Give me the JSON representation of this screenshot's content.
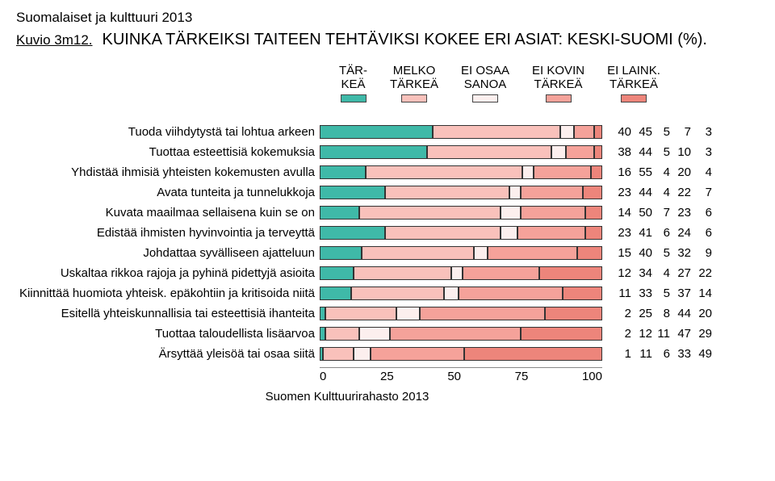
{
  "supertitle": "Suomalaiset ja kulttuuri 2013",
  "kuvio_label": "Kuvio 3m12.",
  "main_title": "KUINKA TÄRKEIKSI TAITEEN TEHTÄVIKSI KOKEE ERI ASIAT: KESKI-SUOMI (%).",
  "source_line": "Suomen Kulttuurirahasto 2013",
  "legend": [
    {
      "line1": "TÄR-",
      "line2": "KEÄ",
      "color": "#3fb9a8"
    },
    {
      "line1": "MELKO",
      "line2": "TÄRKEÄ",
      "color": "#f9c1bb"
    },
    {
      "line1": "EI OSAA",
      "line2": "SANOA",
      "color": "#fcefee"
    },
    {
      "line1": "EI KOVIN",
      "line2": "TÄRKEÄ",
      "color": "#f5a29a"
    },
    {
      "line1": "EI LAINK.",
      "line2": "TÄRKEÄ",
      "color": "#ed857b"
    }
  ],
  "colors": {
    "c1": "#3fb9a8",
    "c2": "#f9c1bb",
    "c3": "#fcefee",
    "c4": "#f5a29a",
    "c5": "#ed857b",
    "border": "#333333"
  },
  "xaxis": {
    "ticks": [
      "0",
      "25",
      "50",
      "75",
      "100"
    ],
    "max": 100
  },
  "num_col_widths": [
    26,
    26,
    22,
    26,
    26
  ],
  "rows": [
    {
      "label": "Tuoda viihdytystä tai lohtua arkeen",
      "v": [
        40,
        45,
        5,
        7,
        3
      ]
    },
    {
      "label": "Tuottaa esteettisiä kokemuksia",
      "v": [
        38,
        44,
        5,
        10,
        3
      ]
    },
    {
      "label": "Yhdistää ihmisiä yhteisten kokemusten avulla",
      "v": [
        16,
        55,
        4,
        20,
        4
      ]
    },
    {
      "label": "Avata tunteita ja tunnelukkoja",
      "v": [
        23,
        44,
        4,
        22,
        7
      ]
    },
    {
      "label": "Kuvata maailmaa sellaisena kuin se on",
      "v": [
        14,
        50,
        7,
        23,
        6
      ]
    },
    {
      "label": "Edistää ihmisten hyvinvointia ja terveyttä",
      "v": [
        23,
        41,
        6,
        24,
        6
      ]
    },
    {
      "label": "Johdattaa syvälliseen ajatteluun",
      "v": [
        15,
        40,
        5,
        32,
        9
      ]
    },
    {
      "label": "Uskaltaa rikkoa rajoja ja pyhinä pidettyjä asioita",
      "v": [
        12,
        34,
        4,
        27,
        22
      ]
    },
    {
      "label": "Kiinnittää huomiota yhteisk. epäkohtiin ja kritisoida niitä",
      "v": [
        11,
        33,
        5,
        37,
        14
      ]
    },
    {
      "label": "Esitellä yhteiskunnallisia tai esteettisiä ihanteita",
      "v": [
        2,
        25,
        8,
        44,
        20
      ]
    },
    {
      "label": "Tuottaa taloudellista lisäarvoa",
      "v": [
        2,
        12,
        11,
        47,
        29
      ]
    },
    {
      "label": "Ärsyttää yleisöä tai osaa siitä",
      "v": [
        1,
        11,
        6,
        33,
        49
      ]
    }
  ]
}
